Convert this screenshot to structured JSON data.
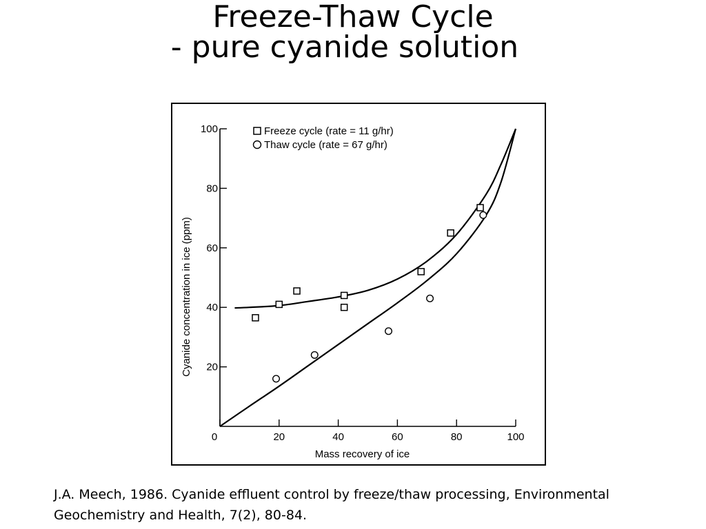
{
  "slide": {
    "title_line1": "Freeze-Thaw Cycle",
    "title_line2": "- pure cyanide solution",
    "citation_line1": "J.A. Meech, 1986. Cyanide effluent control by freeze/thaw processing, Environmental",
    "citation_line2": "Geochemistry and Health, 7(2), 80-84."
  },
  "chart_data": {
    "type": "scatter",
    "xlabel": "Mass recovery of ice",
    "ylabel": "Cyanide concentration in ice (ppm)",
    "xlim": [
      0,
      100
    ],
    "ylim": [
      0,
      100
    ],
    "x_ticks": [
      0,
      20,
      40,
      60,
      80,
      100
    ],
    "y_ticks": [
      20,
      40,
      60,
      80,
      100
    ],
    "grid": false,
    "legend_position": "top-left",
    "series": [
      {
        "name": "Freeze cycle (rate = 11 g/hr)",
        "marker": "square",
        "points": [
          {
            "x": 12,
            "y": 36.5
          },
          {
            "x": 20,
            "y": 41
          },
          {
            "x": 26,
            "y": 45.5
          },
          {
            "x": 42,
            "y": 44
          },
          {
            "x": 42,
            "y": 40
          },
          {
            "x": 68,
            "y": 52
          },
          {
            "x": 78,
            "y": 65
          },
          {
            "x": 88,
            "y": 73.5
          }
        ],
        "fit_curve": [
          [
            5,
            39.8
          ],
          [
            10,
            40
          ],
          [
            20,
            40.6
          ],
          [
            30,
            42
          ],
          [
            40,
            43.5
          ],
          [
            50,
            45.7
          ],
          [
            60,
            49.5
          ],
          [
            70,
            55.5
          ],
          [
            80,
            64.5
          ],
          [
            90,
            78
          ],
          [
            95,
            88
          ],
          [
            100,
            100
          ]
        ]
      },
      {
        "name": "Thaw cycle (rate = 67 g/hr)",
        "marker": "circle",
        "points": [
          {
            "x": 19,
            "y": 16
          },
          {
            "x": 32,
            "y": 24
          },
          {
            "x": 57,
            "y": 32
          },
          {
            "x": 71,
            "y": 43
          },
          {
            "x": 89,
            "y": 71
          }
        ],
        "fit_curve": [
          [
            0,
            0
          ],
          [
            10,
            6.8
          ],
          [
            20,
            13.5
          ],
          [
            30,
            20.5
          ],
          [
            40,
            27.5
          ],
          [
            50,
            34.5
          ],
          [
            60,
            41.5
          ],
          [
            70,
            49
          ],
          [
            80,
            58
          ],
          [
            90,
            71
          ],
          [
            95,
            82
          ],
          [
            100,
            100
          ]
        ]
      }
    ]
  }
}
